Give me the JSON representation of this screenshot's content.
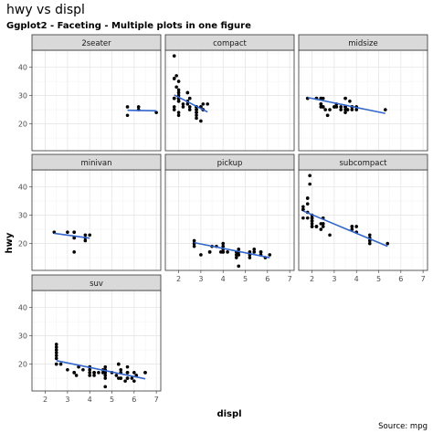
{
  "chart_data": {
    "type": "scatter",
    "title": "hwy vs displ",
    "subtitle": "Ggplot2 - Faceting - Multiple plots in one figure",
    "xlabel": "displ",
    "ylabel": "hwy",
    "caption": "Source: mpg",
    "xlim": [
      1.4,
      7.2
    ],
    "ylim": [
      10.5,
      46
    ],
    "x_ticks": [
      2,
      3,
      4,
      5,
      6,
      7
    ],
    "y_ticks": [
      20,
      30,
      40
    ],
    "grid": true,
    "smoothing": "linear fit per panel",
    "colors": {
      "points": "#000000",
      "fit_line": "#3366cc",
      "strip_fill": "#d9d9d9",
      "panel_border": "#333333",
      "grid_major": "#e6e6e6",
      "grid_minor": "#f2f2f2"
    },
    "facets": [
      {
        "name": "2seater",
        "points": [
          [
            5.7,
            26
          ],
          [
            5.7,
            23
          ],
          [
            6.2,
            26
          ],
          [
            6.2,
            25
          ],
          [
            7.0,
            24
          ]
        ],
        "fit": [
          [
            5.7,
            24.8
          ],
          [
            7.0,
            24.6
          ]
        ]
      },
      {
        "name": "compact",
        "points": [
          [
            1.8,
            29
          ],
          [
            1.8,
            29
          ],
          [
            2.0,
            31
          ],
          [
            2.0,
            30
          ],
          [
            2.8,
            26
          ],
          [
            2.8,
            26
          ],
          [
            3.1,
            27
          ],
          [
            1.8,
            26
          ],
          [
            1.8,
            25
          ],
          [
            2.0,
            28
          ],
          [
            2.0,
            29
          ],
          [
            2.8,
            25
          ],
          [
            2.8,
            25
          ],
          [
            3.1,
            25
          ],
          [
            3.1,
            25
          ],
          [
            2.2,
            26
          ],
          [
            2.2,
            27
          ],
          [
            2.4,
            31
          ],
          [
            2.4,
            31
          ],
          [
            3.0,
            26
          ],
          [
            3.0,
            26
          ],
          [
            3.3,
            27
          ],
          [
            1.8,
            44
          ],
          [
            1.8,
            29
          ],
          [
            1.8,
            29
          ],
          [
            2.0,
            29
          ],
          [
            2.0,
            29
          ],
          [
            2.8,
            23
          ],
          [
            2.0,
            28
          ],
          [
            1.9,
            33
          ],
          [
            1.9,
            37
          ],
          [
            2.0,
            35
          ],
          [
            2.0,
            29
          ],
          [
            2.5,
            29
          ],
          [
            2.5,
            29
          ],
          [
            2.8,
            24
          ],
          [
            2.8,
            24
          ],
          [
            2.5,
            26
          ],
          [
            2.5,
            25
          ],
          [
            1.8,
            36
          ],
          [
            1.8,
            36
          ],
          [
            2.0,
            23
          ],
          [
            2.0,
            24
          ],
          [
            2.0,
            32
          ],
          [
            2.8,
            26
          ],
          [
            2.8,
            22
          ],
          [
            2.4,
            27
          ],
          [
            2.4,
            28
          ],
          [
            3.0,
            21
          ]
        ],
        "fit": [
          [
            1.8,
            30.2
          ],
          [
            3.3,
            24.2
          ]
        ]
      },
      {
        "name": "midsize",
        "points": [
          [
            2.4,
            27
          ],
          [
            2.4,
            29
          ],
          [
            3.1,
            26
          ],
          [
            3.5,
            26
          ],
          [
            3.6,
            25
          ],
          [
            3.6,
            25
          ],
          [
            2.4,
            26
          ],
          [
            2.5,
            26
          ],
          [
            3.3,
            26
          ],
          [
            3.8,
            26
          ],
          [
            3.8,
            25
          ],
          [
            4.0,
            25
          ],
          [
            2.4,
            27
          ],
          [
            2.4,
            29
          ],
          [
            3.5,
            29
          ],
          [
            3.5,
            29
          ],
          [
            5.3,
            25
          ],
          [
            2.2,
            29
          ],
          [
            2.2,
            29
          ],
          [
            2.4,
            27
          ],
          [
            2.4,
            29
          ],
          [
            3.0,
            26
          ],
          [
            3.0,
            26
          ],
          [
            3.5,
            26
          ],
          [
            1.8,
            29
          ],
          [
            1.8,
            29
          ],
          [
            2.5,
            29
          ],
          [
            2.5,
            26
          ],
          [
            2.7,
            23
          ],
          [
            2.7,
            23
          ],
          [
            3.5,
            25
          ],
          [
            3.5,
            26
          ],
          [
            3.3,
            25
          ],
          [
            3.7,
            28
          ],
          [
            3.1,
            27
          ],
          [
            3.8,
            26
          ],
          [
            4.0,
            26
          ],
          [
            3.5,
            24
          ],
          [
            2.6,
            25
          ],
          [
            2.8,
            25
          ]
        ],
        "fit": [
          [
            1.8,
            29.3
          ],
          [
            5.3,
            23.7
          ]
        ]
      },
      {
        "name": "minivan",
        "points": [
          [
            2.4,
            24
          ],
          [
            3.0,
            24
          ],
          [
            3.3,
            22
          ],
          [
            3.3,
            22
          ],
          [
            3.3,
            24
          ],
          [
            3.3,
            24
          ],
          [
            3.3,
            17
          ],
          [
            3.8,
            22
          ],
          [
            3.8,
            21
          ],
          [
            3.8,
            23
          ],
          [
            4.0,
            23
          ]
        ],
        "fit": [
          [
            2.4,
            23.6
          ],
          [
            4.0,
            21.9
          ]
        ]
      },
      {
        "name": "pickup",
        "points": [
          [
            2.7,
            20
          ],
          [
            2.7,
            19
          ],
          [
            3.4,
            17
          ],
          [
            3.4,
            17
          ],
          [
            3.7,
            19
          ],
          [
            3.9,
            17
          ],
          [
            4.0,
            17
          ],
          [
            4.0,
            19
          ],
          [
            4.2,
            17
          ],
          [
            4.6,
            17
          ],
          [
            4.7,
            16
          ],
          [
            4.7,
            12
          ],
          [
            4.7,
            17
          ],
          [
            5.2,
            15
          ],
          [
            5.2,
            17
          ],
          [
            5.7,
            17
          ],
          [
            5.9,
            15
          ],
          [
            4.7,
            18
          ],
          [
            5.7,
            17
          ],
          [
            4.0,
            18
          ],
          [
            4.0,
            17
          ],
          [
            4.6,
            15
          ],
          [
            4.6,
            16
          ],
          [
            5.4,
            18
          ],
          [
            5.4,
            17
          ],
          [
            5.7,
            16
          ],
          [
            6.1,
            16
          ],
          [
            2.7,
            21
          ],
          [
            4.0,
            20
          ],
          [
            3.0,
            16
          ],
          [
            3.5,
            19
          ],
          [
            4.7,
            16
          ],
          [
            5.2,
            16
          ]
        ],
        "fit": [
          [
            2.7,
            20.3
          ],
          [
            6.1,
            15.0
          ]
        ]
      },
      {
        "name": "subcompact",
        "points": [
          [
            1.6,
            33
          ],
          [
            1.6,
            32
          ],
          [
            1.6,
            32
          ],
          [
            1.6,
            29
          ],
          [
            1.6,
            32
          ],
          [
            1.8,
            34
          ],
          [
            1.8,
            36
          ],
          [
            1.8,
            36
          ],
          [
            2.0,
            29
          ],
          [
            2.0,
            26
          ],
          [
            1.9,
            44
          ],
          [
            1.9,
            41
          ],
          [
            2.0,
            29
          ],
          [
            2.0,
            26
          ],
          [
            2.0,
            28
          ],
          [
            2.5,
            29
          ],
          [
            2.5,
            26
          ],
          [
            2.8,
            23
          ],
          [
            3.8,
            26
          ],
          [
            3.8,
            25
          ],
          [
            4.0,
            26
          ],
          [
            4.0,
            24
          ],
          [
            4.6,
            21
          ],
          [
            4.6,
            22
          ],
          [
            4.6,
            23
          ],
          [
            5.4,
            20
          ],
          [
            2.5,
            27
          ],
          [
            2.5,
            27
          ],
          [
            2.2,
            26
          ],
          [
            2.2,
            26
          ],
          [
            2.4,
            27
          ],
          [
            2.4,
            25
          ],
          [
            2.0,
            27
          ],
          [
            1.8,
            31
          ],
          [
            1.8,
            29
          ],
          [
            2.0,
            30
          ],
          [
            2.0,
            28
          ],
          [
            3.8,
            26
          ],
          [
            4.6,
            20
          ]
        ],
        "fit": [
          [
            1.6,
            31.5
          ],
          [
            5.4,
            19.0
          ]
        ]
      },
      {
        "name": "suv",
        "points": [
          [
            5.3,
            20
          ],
          [
            5.3,
            15
          ],
          [
            5.3,
            20
          ],
          [
            5.7,
            17
          ],
          [
            6.0,
            17
          ],
          [
            5.7,
            17
          ],
          [
            4.0,
            19
          ],
          [
            4.7,
            17
          ],
          [
            4.7,
            16
          ],
          [
            4.7,
            12
          ],
          [
            5.7,
            15
          ],
          [
            6.1,
            16
          ],
          [
            4.2,
            17
          ],
          [
            4.4,
            17
          ],
          [
            4.6,
            17
          ],
          [
            5.4,
            15
          ],
          [
            5.4,
            15
          ],
          [
            5.4,
            18
          ],
          [
            4.0,
            17
          ],
          [
            4.0,
            19
          ],
          [
            4.6,
            17
          ],
          [
            5.0,
            17
          ],
          [
            3.3,
            17
          ],
          [
            3.3,
            17
          ],
          [
            4.7,
            18
          ],
          [
            5.7,
            19
          ],
          [
            6.1,
            16
          ],
          [
            2.5,
            27
          ],
          [
            2.5,
            25
          ],
          [
            2.5,
            26
          ],
          [
            2.5,
            23
          ],
          [
            2.5,
            24
          ],
          [
            2.7,
            20
          ],
          [
            3.5,
            19
          ],
          [
            4.0,
            19
          ],
          [
            4.2,
            17
          ],
          [
            5.4,
            17
          ],
          [
            6.5,
            17
          ],
          [
            4.2,
            16
          ],
          [
            4.7,
            17
          ],
          [
            4.7,
            19
          ],
          [
            2.5,
            20
          ],
          [
            2.5,
            22
          ],
          [
            3.0,
            18
          ],
          [
            3.7,
            18
          ],
          [
            4.0,
            18
          ],
          [
            4.6,
            18
          ],
          [
            5.6,
            14
          ],
          [
            3.4,
            16
          ],
          [
            4.0,
            16
          ],
          [
            6.0,
            14
          ],
          [
            6.5,
            17
          ],
          [
            4.7,
            15
          ],
          [
            5.2,
            16
          ],
          [
            5.7,
            15
          ],
          [
            5.9,
            15
          ]
        ],
        "fit": [
          [
            2.5,
            21.2
          ],
          [
            6.5,
            14.8
          ]
        ]
      }
    ]
  }
}
